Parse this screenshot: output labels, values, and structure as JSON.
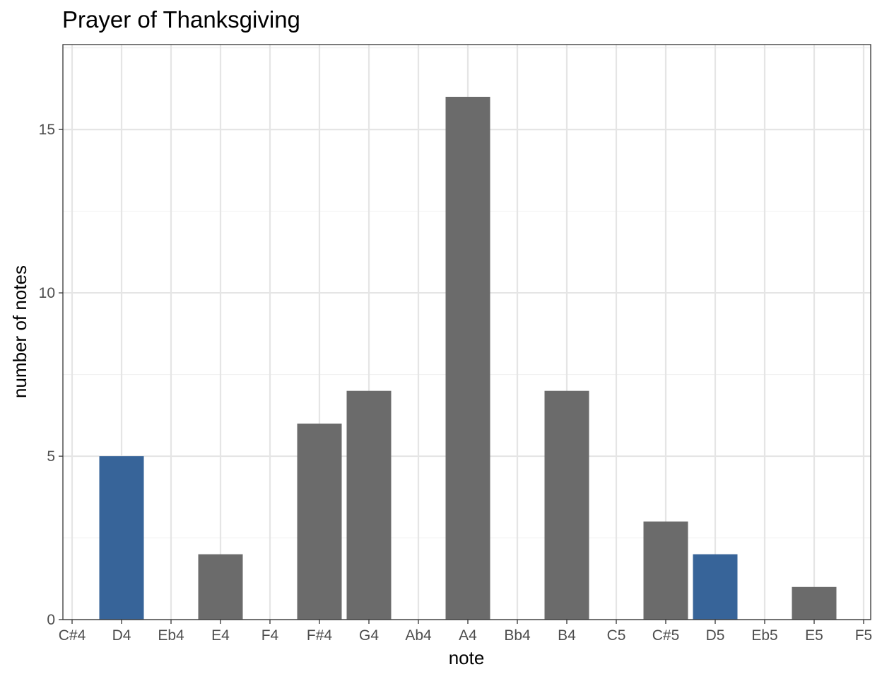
{
  "chart_data": {
    "type": "bar",
    "title": "Prayer of Thanksgiving",
    "xlabel": "note",
    "ylabel": "number of notes",
    "categories": [
      "C#4",
      "D4",
      "Eb4",
      "E4",
      "F4",
      "F#4",
      "G4",
      "Ab4",
      "A4",
      "Bb4",
      "B4",
      "C5",
      "C#5",
      "D5",
      "Eb5",
      "E5",
      "F5"
    ],
    "values": [
      0,
      5,
      0,
      2,
      0,
      6,
      7,
      0,
      16,
      0,
      7,
      0,
      3,
      2,
      0,
      1,
      0
    ],
    "highlighted": [
      "D4",
      "D5"
    ],
    "colors": {
      "default": "#6b6b6b",
      "highlight": "#376499",
      "grid_major": "#e5e5e5",
      "grid_minor": "#f2f2f2",
      "panel_border": "#333333",
      "tick_text": "#4d4d4d"
    },
    "ylim": [
      0,
      17.6
    ],
    "yticks": [
      0,
      5,
      10,
      15
    ],
    "grid": true,
    "legend": "none"
  }
}
